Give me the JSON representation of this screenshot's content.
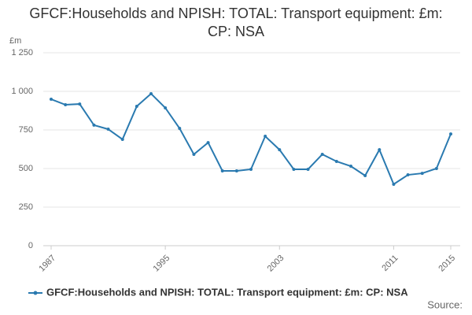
{
  "chart_data": {
    "type": "line",
    "title": "GFCF:Households and NPISH: TOTAL: Transport equipment: £m: CP: NSA",
    "y_label": "£m",
    "source": "Source:",
    "x": [
      1987,
      1988,
      1989,
      1990,
      1991,
      1992,
      1993,
      1994,
      1995,
      1996,
      1997,
      1998,
      1999,
      2000,
      2001,
      2002,
      2003,
      2004,
      2005,
      2006,
      2007,
      2008,
      2009,
      2010,
      2011,
      2012,
      2013,
      2014,
      2015
    ],
    "series": [
      {
        "name": "GFCF:Households and NPISH: TOTAL: Transport equipment: £m: CP: NSA",
        "color": "#2a7ab0",
        "values": [
          949,
          913,
          918,
          781,
          755,
          689,
          903,
          985,
          893,
          760,
          592,
          668,
          485,
          485,
          495,
          709,
          622,
          495,
          495,
          592,
          546,
          515,
          454,
          622,
          398,
          459,
          469,
          500,
          724
        ]
      }
    ],
    "xlim": [
      1987,
      2015
    ],
    "xticks": [
      1987,
      1995,
      2003,
      2011,
      2015
    ],
    "ylim": [
      0,
      1250
    ],
    "yticks": [
      0,
      250,
      500,
      750,
      {
        "value": 1000,
        "label": "1 000"
      },
      {
        "value": 1250,
        "label": "1 250"
      }
    ],
    "grid": true
  }
}
